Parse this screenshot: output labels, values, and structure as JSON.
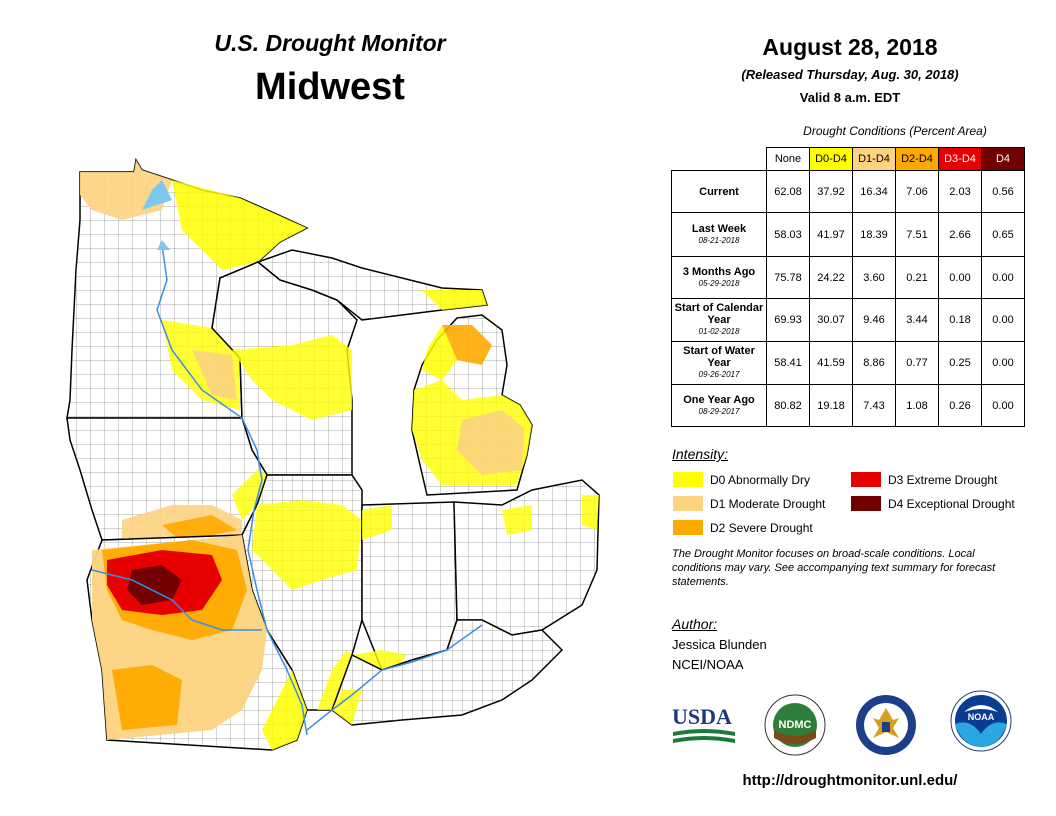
{
  "header": {
    "title": "U.S. Drought Monitor",
    "region": "Midwest",
    "date": "August 28, 2018",
    "released": "(Released Thursday, Aug. 30, 2018)",
    "valid": "Valid 8 a.m. EDT"
  },
  "conditions": {
    "caption": "Drought Conditions (Percent Area)",
    "columns": [
      {
        "label": "None",
        "color": "#ffffff"
      },
      {
        "label": "D0-D4",
        "color": "#ffff00"
      },
      {
        "label": "D1-D4",
        "color": "#fcd37f"
      },
      {
        "label": "D2-D4",
        "color": "#ffaa00"
      },
      {
        "label": "D3-D4",
        "color": "#e60000"
      },
      {
        "label": "D4",
        "color": "#730000"
      }
    ],
    "rows": [
      {
        "label": "Current",
        "date": "",
        "values": [
          "62.08",
          "37.92",
          "16.34",
          "7.06",
          "2.03",
          "0.56"
        ]
      },
      {
        "label": "Last Week",
        "date": "08-21-2018",
        "values": [
          "58.03",
          "41.97",
          "18.39",
          "7.51",
          "2.66",
          "0.65"
        ]
      },
      {
        "label": "3 Months Ago",
        "date": "05-29-2018",
        "values": [
          "75.78",
          "24.22",
          "3.60",
          "0.21",
          "0.00",
          "0.00"
        ]
      },
      {
        "label": "Start of Calendar Year",
        "date": "01-02-2018",
        "values": [
          "69.93",
          "30.07",
          "9.46",
          "3.44",
          "0.18",
          "0.00"
        ]
      },
      {
        "label": "Start of Water Year",
        "date": "09-26-2017",
        "values": [
          "58.41",
          "41.59",
          "8.86",
          "0.77",
          "0.25",
          "0.00"
        ]
      },
      {
        "label": "One Year Ago",
        "date": "08-29-2017",
        "values": [
          "80.82",
          "19.18",
          "7.43",
          "1.08",
          "0.26",
          "0.00"
        ]
      }
    ]
  },
  "legend": {
    "title": "Intensity:",
    "items": [
      {
        "label": "D0 Abnormally Dry",
        "color": "#ffff00"
      },
      {
        "label": "D1 Moderate Drought",
        "color": "#fcd37f"
      },
      {
        "label": "D2 Severe Drought",
        "color": "#ffaa00"
      },
      {
        "label": "D3 Extreme Drought",
        "color": "#e60000"
      },
      {
        "label": "D4 Exceptional Drought",
        "color": "#730000"
      }
    ]
  },
  "note": "The Drought Monitor focuses on broad-scale conditions. Local conditions may vary. See accompanying text summary for forecast statements.",
  "author": {
    "title": "Author:",
    "name": "Jessica Blunden",
    "org": "NCEI/NOAA"
  },
  "logos": [
    {
      "name": "usda-logo",
      "text": "USDA"
    },
    {
      "name": "ndmc-logo",
      "text": "NDMC"
    },
    {
      "name": "commerce-seal-logo",
      "text": ""
    },
    {
      "name": "noaa-logo",
      "text": "NOAA"
    }
  ],
  "url": "http://droughtmonitor.unl.edu/"
}
